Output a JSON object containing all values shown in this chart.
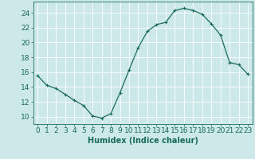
{
  "x": [
    0,
    1,
    2,
    3,
    4,
    5,
    6,
    7,
    8,
    9,
    10,
    11,
    12,
    13,
    14,
    15,
    16,
    17,
    18,
    19,
    20,
    21,
    22,
    23
  ],
  "y": [
    15.5,
    14.2,
    13.8,
    13.0,
    12.2,
    11.5,
    10.1,
    9.8,
    10.4,
    13.2,
    16.3,
    19.3,
    21.5,
    22.4,
    22.7,
    24.3,
    24.6,
    24.3,
    23.8,
    22.5,
    21.0,
    17.3,
    17.0,
    15.7
  ],
  "line_color": "#1a6b5a",
  "marker": "+",
  "marker_size": 3.5,
  "marker_linewidth": 0.8,
  "line_width": 0.9,
  "bg_color": "#cce8e8",
  "grid_color": "#ffffff",
  "xlabel": "Humidex (Indice chaleur)",
  "xlabel_fontsize": 7,
  "tick_fontsize": 6.5,
  "ylim": [
    9,
    25.5
  ],
  "xlim": [
    -0.5,
    23.5
  ],
  "yticks": [
    10,
    12,
    14,
    16,
    18,
    20,
    22,
    24
  ],
  "xticks": [
    0,
    1,
    2,
    3,
    4,
    5,
    6,
    7,
    8,
    9,
    10,
    11,
    12,
    13,
    14,
    15,
    16,
    17,
    18,
    19,
    20,
    21,
    22,
    23
  ]
}
